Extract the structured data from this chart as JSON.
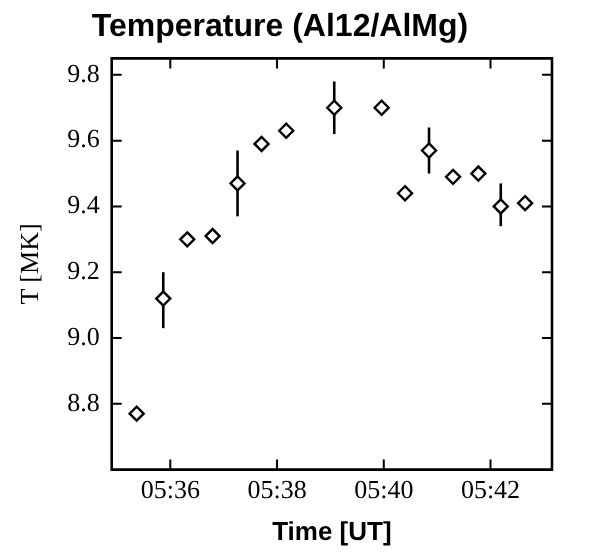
{
  "chart_data": {
    "type": "scatter",
    "title": "Temperature (Al12/AlMg)",
    "xlabel": "Time [UT]",
    "ylabel": "T [MK]",
    "x": [
      5.5895,
      5.5978,
      5.6053,
      5.6132,
      5.621,
      5.6285,
      5.6362,
      5.6512,
      5.666,
      5.6733,
      5.6808,
      5.6883,
      5.6962,
      5.7032,
      5.7108
    ],
    "series": [
      {
        "color": "#000000",
        "values": [
          8.77,
          9.12,
          9.3,
          9.31,
          9.47,
          9.59,
          9.63,
          9.7,
          9.7,
          9.44,
          9.57,
          9.49,
          9.5,
          9.4,
          9.41
        ],
        "errors": [
          null,
          [
            9.03,
            9.2
          ],
          null,
          null,
          [
            9.37,
            9.57
          ],
          null,
          null,
          [
            9.62,
            9.78
          ],
          null,
          null,
          [
            9.5,
            9.64
          ],
          null,
          null,
          [
            9.34,
            9.47
          ],
          null
        ]
      }
    ],
    "xlim": [
      5.5817,
      5.7192
    ],
    "xticks": [
      {
        "value": 5.6,
        "label": "05:36"
      },
      {
        "value": 5.63333,
        "label": "05:38"
      },
      {
        "value": 5.66667,
        "label": "05:40"
      },
      {
        "value": 5.7,
        "label": "05:42"
      }
    ],
    "ylim": [
      8.6,
      9.85
    ],
    "yticks": [
      {
        "value": 8.8,
        "label": "8.8"
      },
      {
        "value": 9.0,
        "label": "9.0"
      },
      {
        "value": 9.2,
        "label": "9.2"
      },
      {
        "value": 9.4,
        "label": "9.4"
      },
      {
        "value": 9.6,
        "label": "9.6"
      },
      {
        "value": 9.8,
        "label": "9.8"
      }
    ],
    "marker": "diamond",
    "grid": false,
    "legend": false
  }
}
